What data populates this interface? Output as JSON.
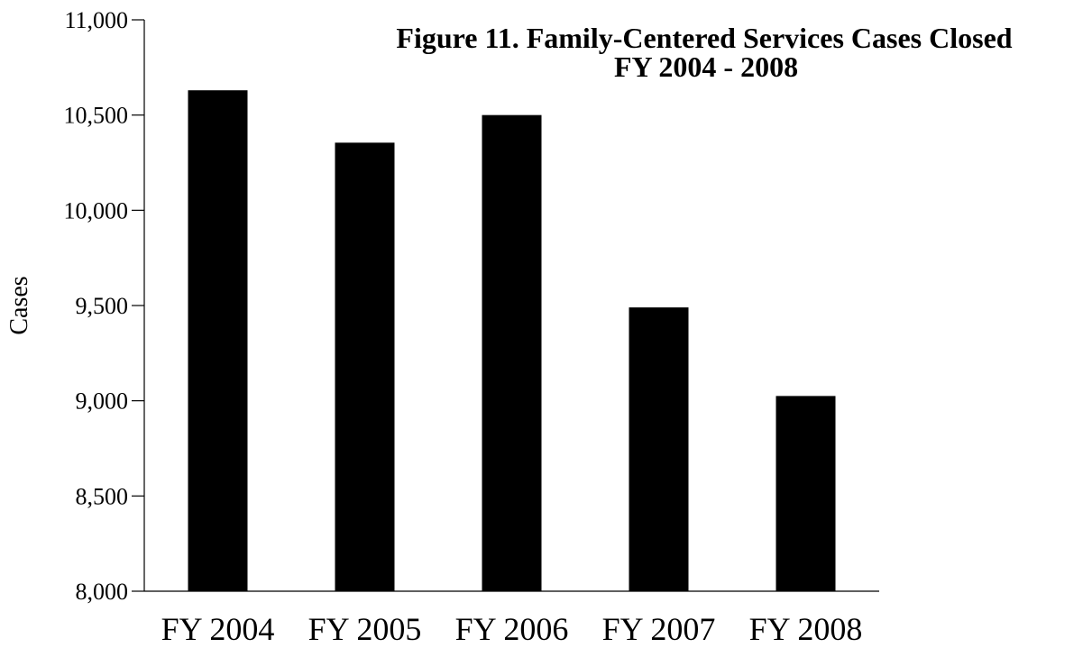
{
  "chart_data": {
    "type": "bar",
    "title": "Figure 11.  Family-Centered Services Cases Closed",
    "subtitle": "FY 2004 - 2008",
    "xlabel": "",
    "ylabel": "Cases",
    "categories": [
      "FY 2004",
      "FY 2005",
      "FY 2006",
      "FY 2007",
      "FY 2008"
    ],
    "values": [
      10630,
      10355,
      10500,
      9490,
      9025
    ],
    "ylim": [
      8000,
      11000
    ],
    "yticks": [
      8000,
      8500,
      9000,
      9500,
      10000,
      10500,
      11000
    ],
    "ytick_labels": [
      "8,000",
      "8,500",
      "9,000",
      "9,500",
      "10,000",
      "10,500",
      "11,000"
    ],
    "grid": false,
    "legend": "none",
    "colors": {
      "bar": "#000000",
      "axis": "#000000",
      "background": "#ffffff"
    }
  }
}
